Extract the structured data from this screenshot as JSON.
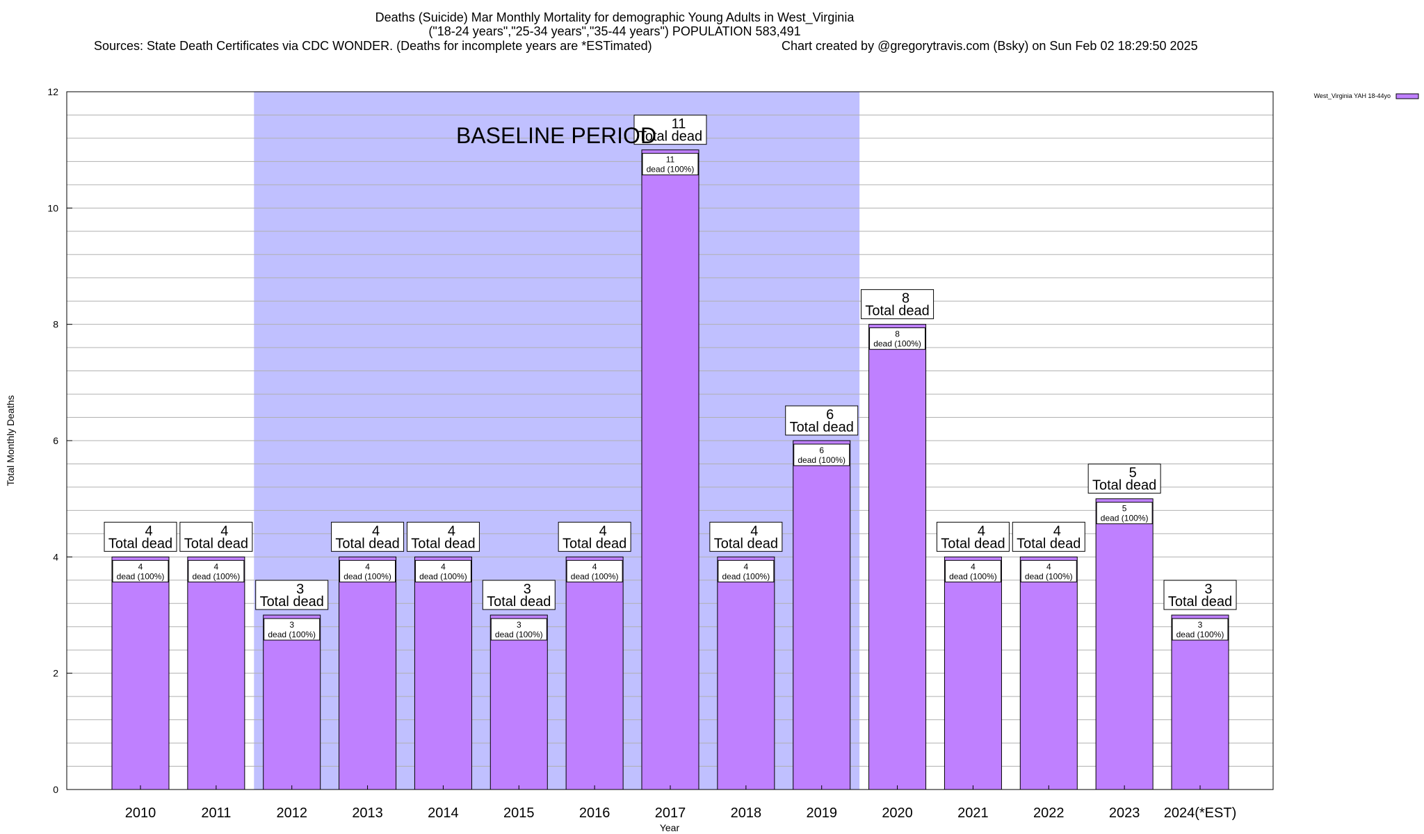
{
  "chart_data": {
    "type": "bar",
    "title": "Deaths (Suicide) Mar Monthly Mortality for demographic Young Adults in West_Virginia",
    "subtitle": "(\"18-24 years\",\"25-34 years\",\"35-44 years\") POPULATION 583,491",
    "sources": "Sources: State Death Certificates via CDC WONDER. (Deaths for incomplete years are *ESTimated)",
    "credit": "Chart created by @gregorytravis.com (Bsky) on Sun Feb 02 18:29:50 2025",
    "xlabel": "Year",
    "ylabel": "Total Monthly Deaths",
    "ylim": [
      0,
      12
    ],
    "yticks": [
      0,
      2,
      4,
      6,
      8,
      10,
      12
    ],
    "grid": true,
    "legend_position": "top-right",
    "categories": [
      "2010",
      "2011",
      "2012",
      "2013",
      "2014",
      "2015",
      "2016",
      "2017",
      "2018",
      "2019",
      "2020",
      "2021",
      "2022",
      "2023",
      "2024(*EST)"
    ],
    "series": [
      {
        "name": "West_Virginia YAH 18-44yo",
        "color": "#bf80ff",
        "values": [
          4,
          4,
          3,
          4,
          4,
          3,
          4,
          11,
          4,
          6,
          8,
          4,
          4,
          5,
          3
        ]
      }
    ],
    "top_label_suffix": "Total dead",
    "inner_label_suffix": "dead (100%)",
    "baseline": {
      "label": "BASELINE PERIOD",
      "from": "2012",
      "to": "2019",
      "color": "#c0c0ff"
    }
  }
}
